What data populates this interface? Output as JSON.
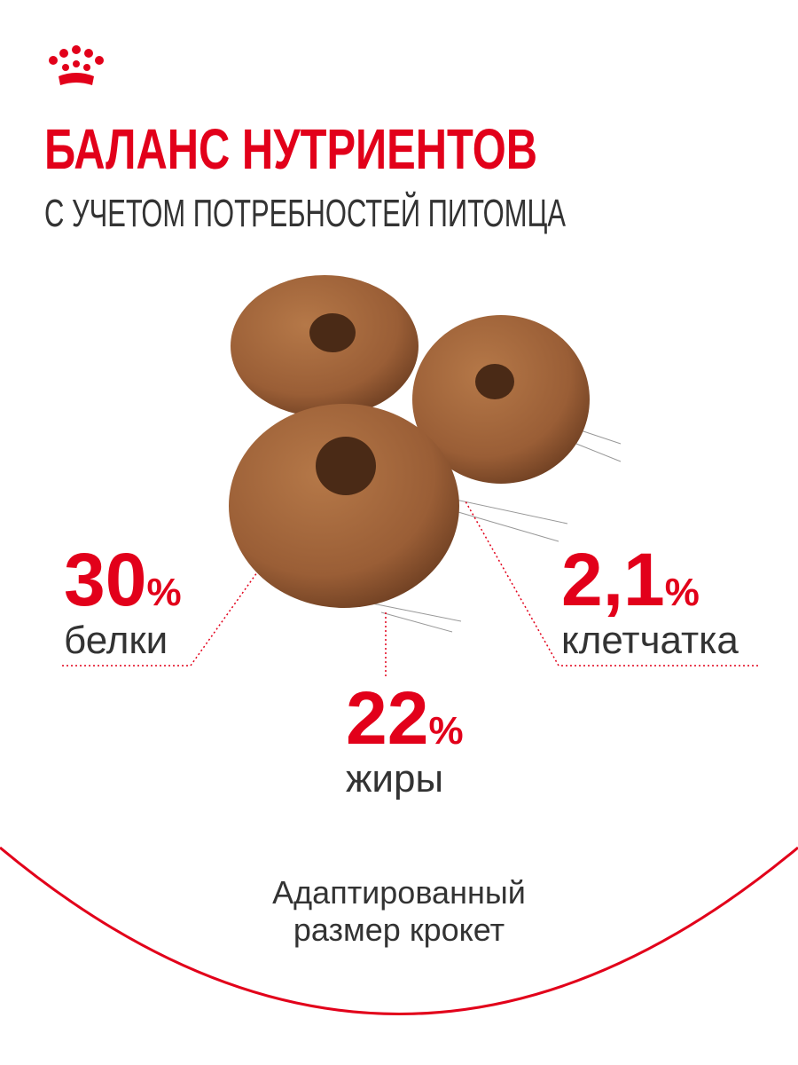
{
  "header": {
    "title": "БАЛАНС НУТРИЕНТОВ",
    "subtitle": "С УЧЕТОМ ПОТРЕБНОСТЕЙ ПИТОМЦА"
  },
  "nutrients": [
    {
      "value": "30",
      "unit": "%",
      "label": "белки"
    },
    {
      "value": "22",
      "unit": "%",
      "label": "жиры"
    },
    {
      "value": "2,1",
      "unit": "%",
      "label": "клетчатка"
    }
  ],
  "footer": {
    "lines": [
      "Адаптированный",
      "размер крокет"
    ]
  }
}
